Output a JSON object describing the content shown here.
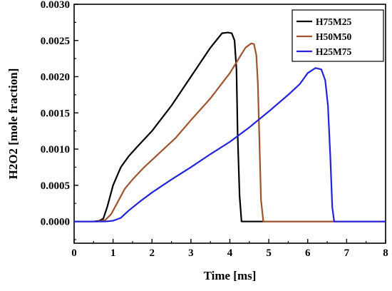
{
  "chart_data": {
    "type": "line",
    "title": "",
    "xlabel": "Time [ms]",
    "ylabel": "H2O2 [mole fraction]",
    "xlim": [
      0,
      8
    ],
    "ylim": [
      -0.0003,
      0.003
    ],
    "x_ticks": [
      "0",
      "1",
      "2",
      "3",
      "4",
      "5",
      "6",
      "7",
      "8"
    ],
    "x_tick_values": [
      0,
      1,
      2,
      3,
      4,
      5,
      6,
      7,
      8
    ],
    "y_ticks": [
      "0.0000",
      "0.0005",
      "0.0010",
      "0.0015",
      "0.0020",
      "0.0025",
      "0.0030"
    ],
    "y_tick_values": [
      0,
      0.0005,
      0.001,
      0.0015,
      0.002,
      0.0025,
      0.003
    ],
    "grid": false,
    "legend_position": "top-right",
    "series": [
      {
        "name": "H75M25",
        "color": "#000000",
        "x": [
          0,
          0.5,
          0.65,
          0.75,
          0.85,
          1.0,
          1.2,
          1.4,
          1.6,
          2.0,
          2.5,
          3.0,
          3.5,
          3.8,
          3.95,
          4.05,
          4.12,
          4.17,
          4.2,
          4.25,
          4.3,
          8
        ],
        "y": [
          0,
          0,
          1e-05,
          4e-05,
          0.0002,
          0.0005,
          0.00075,
          0.0009,
          0.00102,
          0.00125,
          0.0016,
          0.002,
          0.0024,
          0.0026,
          0.00261,
          0.0026,
          0.0025,
          0.0021,
          0.0012,
          0.00035,
          0,
          0
        ]
      },
      {
        "name": "H50M50",
        "color": "#a0522d",
        "x": [
          0,
          0.6,
          0.8,
          0.95,
          1.1,
          1.3,
          1.5,
          1.8,
          2.2,
          2.6,
          3.0,
          3.5,
          4.0,
          4.4,
          4.55,
          4.62,
          4.68,
          4.72,
          4.76,
          4.8,
          4.86,
          8
        ],
        "y": [
          0,
          0,
          2e-05,
          0.0001,
          0.00025,
          0.00045,
          0.00058,
          0.00075,
          0.00095,
          0.00115,
          0.0014,
          0.0017,
          0.00205,
          0.0024,
          0.00246,
          0.00245,
          0.0023,
          0.0019,
          0.0011,
          0.0003,
          0,
          0
        ]
      },
      {
        "name": "H25M75",
        "color": "#2222dd",
        "x": [
          0,
          0.8,
          1.0,
          1.2,
          1.4,
          1.7,
          2.0,
          2.5,
          3.0,
          3.5,
          4.0,
          4.5,
          5.0,
          5.5,
          5.8,
          6.0,
          6.2,
          6.35,
          6.45,
          6.52,
          6.58,
          6.63,
          6.68,
          8
        ],
        "y": [
          0,
          0,
          1e-05,
          5e-05,
          0.00015,
          0.00028,
          0.0004,
          0.00058,
          0.00075,
          0.00093,
          0.0011,
          0.0013,
          0.00152,
          0.00175,
          0.0019,
          0.00205,
          0.00212,
          0.0021,
          0.00195,
          0.0016,
          0.0009,
          0.0002,
          0,
          0
        ]
      }
    ]
  }
}
